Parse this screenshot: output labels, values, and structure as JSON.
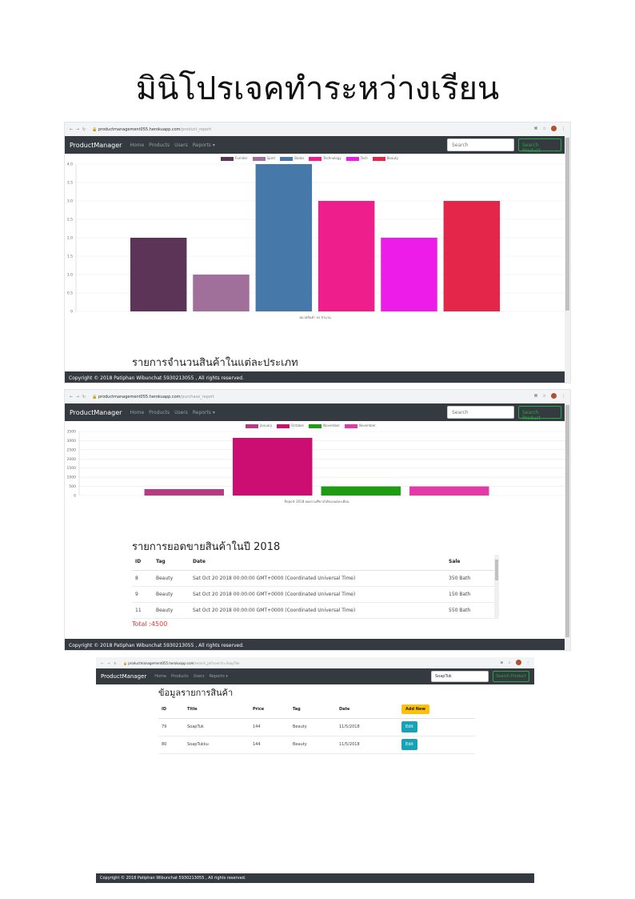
{
  "page_title": "มินิโปรเจคทำระหว่างเรียน",
  "navbar": {
    "brand": "ProductManager",
    "links": [
      "Home",
      "Products",
      "Users",
      "Reports ▾"
    ],
    "search_placeholder": "Search",
    "search_button": "Search Product"
  },
  "footer": "Copyright © 2018 Patiphan Wibunchat 5930213055 , All rights reserved.",
  "shot1": {
    "url_host": "productmanagement055.herokuapp.com",
    "url_path": "/product_report",
    "heading": "รายการจำนวนสินค้าในแต่ละประเภท",
    "chart_data": {
      "type": "bar",
      "categories": [
        "Furniter",
        "Sport",
        "Books",
        "Technology",
        "Tech",
        "Beauty"
      ],
      "values": [
        2,
        1,
        4,
        3,
        2,
        3
      ],
      "colors": [
        "#5c3458",
        "#a0709a",
        "#4678aa",
        "#ee1f8c",
        "#ee1ce8",
        "#e3264a"
      ],
      "xlabel": "หมวดสินค้า vs จำนวน",
      "ylim": [
        0,
        4
      ],
      "yticks": [
        "4.0",
        "3.5",
        "3.0",
        "2.5",
        "2.0",
        "1.5",
        "1.0",
        "0.5",
        "0"
      ],
      "legend": "top-center",
      "grid": true
    }
  },
  "shot2": {
    "url_host": "productmanagement055.herokuapp.com",
    "url_path": "/purchase_report",
    "heading": "รายการยอดขายสินค้าในปี 2018",
    "chart_data": {
      "type": "bar",
      "categories": [
        "January",
        "October",
        "November",
        "November"
      ],
      "values": [
        350,
        3150,
        500,
        500
      ],
      "colors": [
        "#b83a82",
        "#cc0e72",
        "#1e9c12",
        "#e43aa8"
      ],
      "xlabel": "Report 2018 ยอดรวมที่ขายได้ของแต่ละเดือน",
      "ylim": [
        0,
        3500
      ],
      "yticks": [
        "3500",
        "3000",
        "2500",
        "2000",
        "1500",
        "1000",
        "500",
        "0"
      ],
      "legend": "top-center",
      "grid": true
    },
    "table": {
      "headers": [
        "ID",
        "Tag",
        "Date",
        "Sale"
      ],
      "rows": [
        [
          "8",
          "Beauty",
          "Sat Oct 20 2018 00:00:00 GMT+0000 (Coordinated Universal Time)",
          "350 Bath"
        ],
        [
          "9",
          "Beauty",
          "Sat Oct 20 2018 00:00:00 GMT+0000 (Coordinated Universal Time)",
          "150 Bath"
        ],
        [
          "11",
          "Beauty",
          "Sat Oct 20 2018 00:00:00 GMT+0000 (Coordinated Universal Time)",
          "550 Bath"
        ]
      ]
    },
    "total": "Total :4500"
  },
  "shot3": {
    "url_host": "productmanagement055.herokuapp.com",
    "url_path": "/search_pd?search=SoapTuk",
    "search_value": "SoapTuk",
    "heading": "ข้อมูลรายการสินค้า",
    "add_button": "Add New",
    "table": {
      "headers": [
        "ID",
        "Title",
        "Price",
        "Tag",
        "Date"
      ],
      "rows": [
        [
          "79",
          "SoapTuk",
          "144",
          "Beauty",
          "11/5/2018"
        ],
        [
          "80",
          "SoapTukku",
          "144",
          "Beauty",
          "11/5/2018"
        ]
      ]
    },
    "edit_label": "Edit"
  }
}
